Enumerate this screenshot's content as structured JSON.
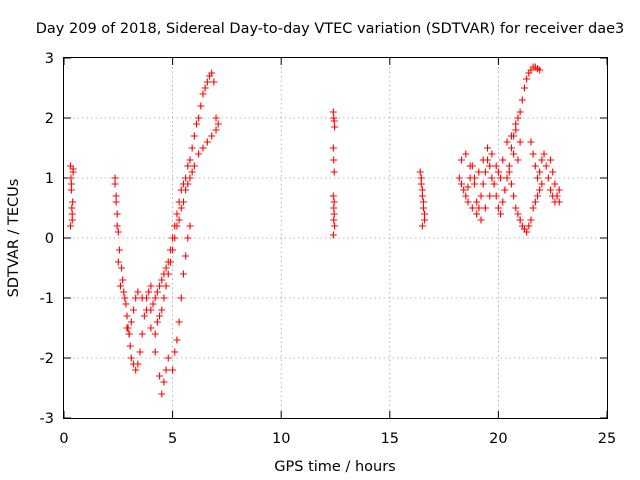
{
  "chart_data": {
    "type": "scatter",
    "title": "Day 209 of 2018, Sidereal Day-to-day VTEC variation (SDTVAR) for receiver dae3",
    "xlabel": "GPS time / hours",
    "ylabel": "SDTVAR / TECUs",
    "xlim": [
      0,
      25
    ],
    "ylim": [
      -3,
      3
    ],
    "xticks": [
      0,
      5,
      10,
      15,
      20,
      25
    ],
    "yticks": [
      -3,
      -2,
      -1,
      0,
      1,
      2,
      3
    ],
    "grid": true,
    "marker": "plus",
    "color": "#ff0000",
    "series": [
      {
        "name": "SDTVAR",
        "x": [
          0.3,
          0.32,
          0.34,
          0.36,
          0.38,
          0.4,
          0.42,
          0.3,
          0.34,
          0.38,
          0.42,
          2.35,
          2.4,
          2.45,
          2.5,
          2.55,
          2.35,
          2.4,
          2.45,
          2.5,
          2.6,
          2.65,
          2.7,
          2.75,
          2.8,
          2.85,
          2.9,
          2.95,
          3.0,
          3.05,
          3.1,
          3.2,
          3.3,
          3.4,
          3.5,
          3.6,
          3.7,
          3.8,
          3.9,
          4.0,
          2.9,
          3.0,
          3.1,
          3.2,
          3.3,
          3.4,
          3.6,
          3.8,
          4.0,
          4.2,
          4.4,
          4.5,
          4.6,
          4.7,
          4.8,
          4.0,
          4.1,
          4.2,
          4.3,
          4.4,
          4.5,
          4.6,
          4.7,
          4.8,
          4.9,
          5.0,
          5.1,
          5.2,
          5.3,
          5.4,
          5.5,
          5.6,
          5.7,
          5.8,
          5.9,
          6.0,
          6.1,
          6.2,
          6.3,
          6.4,
          6.5,
          6.6,
          6.7,
          6.8,
          6.9,
          7.0,
          7.1,
          4.2,
          4.3,
          4.4,
          4.5,
          4.6,
          4.7,
          4.8,
          4.9,
          5.0,
          5.1,
          5.2,
          5.3,
          5.4,
          5.5,
          5.6,
          5.7,
          5.8,
          5.9,
          6.0,
          6.2,
          6.4,
          6.6,
          6.8,
          7.0,
          5.0,
          5.1,
          5.2,
          5.3,
          5.4,
          5.5,
          5.6,
          5.7,
          5.8,
          12.4,
          12.42,
          12.44,
          12.46,
          12.4,
          12.42,
          12.44,
          12.4,
          12.42,
          12.44,
          12.46,
          12.4,
          12.42,
          12.44,
          16.4,
          16.45,
          16.5,
          16.55,
          16.6,
          16.5,
          16.55,
          16.6,
          16.45,
          16.5,
          18.2,
          18.3,
          18.4,
          18.5,
          18.6,
          18.7,
          18.8,
          18.9,
          19.0,
          19.1,
          19.2,
          19.3,
          19.4,
          19.5,
          19.6,
          19.7,
          19.8,
          19.9,
          20.0,
          20.1,
          20.2,
          20.3,
          20.4,
          20.5,
          20.6,
          20.7,
          20.8,
          20.9,
          21.0,
          18.3,
          18.5,
          18.7,
          18.9,
          19.1,
          19.3,
          19.5,
          19.7,
          19.9,
          20.1,
          20.3,
          20.5,
          20.7,
          20.9,
          18.6,
          18.8,
          19.0,
          19.2,
          19.4,
          19.6,
          19.8,
          20.0,
          20.2,
          20.4,
          20.6,
          20.8,
          21.0,
          20.6,
          20.7,
          20.8,
          20.9,
          21.0,
          21.1,
          21.2,
          21.3,
          21.4,
          21.5,
          21.6,
          21.7,
          21.8,
          21.9,
          21.0,
          21.1,
          21.2,
          21.3,
          21.4,
          21.5,
          21.6,
          21.7,
          21.8,
          21.9,
          22.0,
          21.5,
          21.6,
          21.7,
          21.8,
          21.9,
          22.0,
          22.1,
          22.2,
          22.3,
          22.4,
          22.5,
          22.6,
          22.7,
          22.8,
          22.4,
          22.5,
          22.6,
          22.7,
          22.8
        ],
        "y": [
          1.2,
          1.0,
          0.8,
          0.5,
          0.3,
          0.6,
          1.1,
          0.2,
          0.9,
          0.4,
          1.15,
          1.0,
          0.7,
          0.4,
          0.1,
          -0.2,
          0.9,
          0.6,
          0.2,
          -0.4,
          -0.8,
          -0.5,
          -0.7,
          -0.9,
          -1.0,
          -1.1,
          -1.3,
          -1.5,
          -1.6,
          -1.8,
          -2.0,
          -2.1,
          -2.2,
          -2.1,
          -1.9,
          -1.6,
          -1.3,
          -1.0,
          -0.9,
          -0.8,
          -1.5,
          -1.6,
          -1.4,
          -1.2,
          -1.0,
          -0.9,
          -1.0,
          -1.2,
          -1.5,
          -1.9,
          -2.3,
          -2.6,
          -2.4,
          -2.2,
          -2.0,
          -1.2,
          -1.1,
          -1.0,
          -0.9,
          -0.8,
          -0.7,
          -0.6,
          -0.5,
          -0.4,
          -0.2,
          0.0,
          0.2,
          0.4,
          0.6,
          0.8,
          0.9,
          1.0,
          1.2,
          1.3,
          1.5,
          1.7,
          1.9,
          2.0,
          2.2,
          2.4,
          2.5,
          2.6,
          2.7,
          2.75,
          2.6,
          2.0,
          1.9,
          -1.6,
          -1.4,
          -1.3,
          -1.2,
          -1.0,
          -0.8,
          -0.6,
          -0.4,
          -0.2,
          0.0,
          0.2,
          0.3,
          0.5,
          0.6,
          0.8,
          0.9,
          1.0,
          1.1,
          1.2,
          1.4,
          1.5,
          1.6,
          1.7,
          1.8,
          -2.2,
          -1.9,
          -1.7,
          -1.4,
          -1.0,
          -0.6,
          -0.3,
          0.0,
          0.2,
          2.1,
          2.0,
          1.95,
          1.85,
          1.5,
          1.3,
          1.1,
          0.7,
          0.5,
          0.4,
          0.2,
          0.05,
          0.3,
          0.6,
          1.1,
          0.9,
          0.7,
          0.5,
          0.3,
          0.8,
          0.6,
          0.4,
          1.0,
          0.2,
          1.0,
          0.9,
          0.8,
          0.7,
          0.85,
          1.0,
          1.2,
          0.9,
          0.6,
          0.5,
          0.7,
          0.9,
          1.1,
          1.3,
          1.2,
          1.0,
          0.9,
          0.7,
          0.5,
          0.4,
          0.6,
          0.8,
          1.0,
          1.1,
          0.9,
          0.7,
          0.5,
          0.4,
          0.3,
          1.3,
          1.4,
          1.2,
          1.0,
          1.1,
          1.3,
          1.5,
          1.4,
          1.2,
          1.0,
          0.8,
          1.2,
          1.4,
          1.3,
          0.6,
          0.5,
          0.4,
          0.3,
          0.5,
          0.7,
          0.9,
          1.1,
          1.3,
          1.6,
          1.7,
          1.8,
          1.6,
          1.5,
          1.7,
          1.9,
          2.0,
          2.1,
          2.3,
          2.5,
          2.65,
          2.75,
          2.8,
          2.85,
          2.85,
          2.82,
          2.8,
          0.3,
          0.2,
          0.15,
          0.1,
          0.2,
          0.3,
          0.5,
          0.6,
          0.7,
          0.8,
          0.9,
          1.6,
          1.4,
          1.2,
          1.0,
          1.1,
          1.3,
          1.4,
          1.2,
          1.0,
          0.8,
          0.7,
          0.6,
          0.7,
          0.8,
          1.3,
          1.1,
          0.9,
          0.7,
          0.6
        ]
      }
    ]
  }
}
